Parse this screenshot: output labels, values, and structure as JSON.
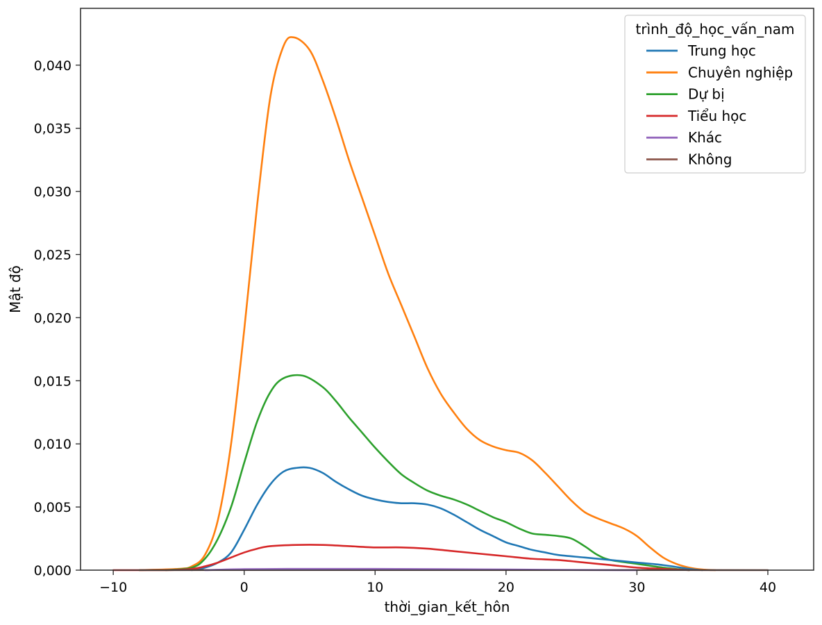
{
  "chart_data": {
    "type": "line",
    "title": "",
    "xlabel": "thời_gian_kết_hôn",
    "ylabel": "Mật độ",
    "xlim": [
      -12.5,
      43.5
    ],
    "ylim": [
      0,
      0.0445
    ],
    "x_ticks": [
      -10,
      0,
      10,
      20,
      30,
      40
    ],
    "x_tick_labels": [
      "−10",
      "0",
      "10",
      "20",
      "30",
      "40"
    ],
    "y_ticks": [
      0,
      0.005,
      0.01,
      0.015,
      0.02,
      0.025,
      0.03,
      0.035,
      0.04
    ],
    "y_tick_labels": [
      "0,000",
      "0,005",
      "0,010",
      "0,015",
      "0,020",
      "0,025",
      "0,030",
      "0,035",
      "0,040"
    ],
    "grid": false,
    "legend": {
      "title": "trình_độ_học_vấn_nam",
      "placement": "top-right"
    },
    "series": [
      {
        "name": "Trung học",
        "color": "#1f77b4",
        "points": [
          [
            -4,
            0
          ],
          [
            -3,
            0.0002
          ],
          [
            -2,
            0.0006
          ],
          [
            -1,
            0.0014
          ],
          [
            0,
            0.0032
          ],
          [
            1,
            0.0052
          ],
          [
            2,
            0.0068
          ],
          [
            3,
            0.0078
          ],
          [
            4,
            0.0081
          ],
          [
            5,
            0.0081
          ],
          [
            6,
            0.0077
          ],
          [
            7,
            0.007
          ],
          [
            8,
            0.0064
          ],
          [
            9,
            0.0059
          ],
          [
            10,
            0.0056
          ],
          [
            11,
            0.0054
          ],
          [
            12,
            0.0053
          ],
          [
            13,
            0.0053
          ],
          [
            14,
            0.0052
          ],
          [
            15,
            0.0049
          ],
          [
            16,
            0.0044
          ],
          [
            17,
            0.0038
          ],
          [
            18,
            0.0032
          ],
          [
            19,
            0.0027
          ],
          [
            20,
            0.0022
          ],
          [
            21,
            0.0019
          ],
          [
            22,
            0.0016
          ],
          [
            23,
            0.0014
          ],
          [
            24,
            0.0012
          ],
          [
            26,
            0.001
          ],
          [
            28,
            0.0008
          ],
          [
            30,
            0.0006
          ],
          [
            32,
            0.0004
          ],
          [
            34,
            0.0001
          ],
          [
            35,
            0
          ]
        ]
      },
      {
        "name": "Chuyên nghiệp",
        "color": "#ff7f0e",
        "points": [
          [
            -8,
            0
          ],
          [
            -5,
            0.0001
          ],
          [
            -4,
            0.0003
          ],
          [
            -3,
            0.0012
          ],
          [
            -2,
            0.004
          ],
          [
            -1,
            0.01
          ],
          [
            0,
            0.019
          ],
          [
            1,
            0.029
          ],
          [
            2,
            0.0375
          ],
          [
            3,
            0.0415
          ],
          [
            3.8,
            0.0422
          ],
          [
            5,
            0.0412
          ],
          [
            6,
            0.0388
          ],
          [
            7,
            0.0358
          ],
          [
            8,
            0.0325
          ],
          [
            9,
            0.0295
          ],
          [
            10,
            0.0265
          ],
          [
            11,
            0.0235
          ],
          [
            12,
            0.021
          ],
          [
            13,
            0.0185
          ],
          [
            14,
            0.016
          ],
          [
            15,
            0.014
          ],
          [
            16,
            0.0125
          ],
          [
            17,
            0.0112
          ],
          [
            18,
            0.0103
          ],
          [
            19,
            0.0098
          ],
          [
            20,
            0.0095
          ],
          [
            21,
            0.0093
          ],
          [
            22,
            0.0087
          ],
          [
            23,
            0.0077
          ],
          [
            24,
            0.0066
          ],
          [
            25,
            0.0055
          ],
          [
            26,
            0.0046
          ],
          [
            27,
            0.0041
          ],
          [
            28,
            0.0037
          ],
          [
            29,
            0.0033
          ],
          [
            30,
            0.0027
          ],
          [
            31,
            0.0018
          ],
          [
            32,
            0.001
          ],
          [
            33,
            0.0005
          ],
          [
            34,
            0.0002
          ],
          [
            35,
            5e-05
          ],
          [
            36,
            0
          ]
        ]
      },
      {
        "name": "Dự bị",
        "color": "#2ca02c",
        "points": [
          [
            -6,
            0
          ],
          [
            -4,
            0.0002
          ],
          [
            -3,
            0.0009
          ],
          [
            -2,
            0.0025
          ],
          [
            -1,
            0.005
          ],
          [
            0,
            0.0085
          ],
          [
            1,
            0.0118
          ],
          [
            2,
            0.0141
          ],
          [
            3,
            0.0152
          ],
          [
            4.5,
            0.0154
          ],
          [
            6,
            0.0145
          ],
          [
            7,
            0.0134
          ],
          [
            8,
            0.0121
          ],
          [
            9,
            0.0109
          ],
          [
            10,
            0.0097
          ],
          [
            11,
            0.0086
          ],
          [
            12,
            0.0076
          ],
          [
            13,
            0.0069
          ],
          [
            14,
            0.0063
          ],
          [
            15,
            0.0059
          ],
          [
            16,
            0.0056
          ],
          [
            17,
            0.0052
          ],
          [
            18,
            0.0047
          ],
          [
            19,
            0.0042
          ],
          [
            20,
            0.0038
          ],
          [
            21,
            0.0033
          ],
          [
            22,
            0.0029
          ],
          [
            23,
            0.0028
          ],
          [
            24,
            0.0027
          ],
          [
            25,
            0.0025
          ],
          [
            26,
            0.0019
          ],
          [
            27,
            0.0012
          ],
          [
            28,
            0.0008
          ],
          [
            30,
            0.0005
          ],
          [
            32,
            0.0002
          ],
          [
            34,
            0
          ]
        ]
      },
      {
        "name": "Tiểu học",
        "color": "#d62728",
        "points": [
          [
            -10,
            0
          ],
          [
            -6,
            0
          ],
          [
            -4,
            0.0001
          ],
          [
            -3,
            0.0003
          ],
          [
            -2,
            0.0006
          ],
          [
            -1,
            0.001
          ],
          [
            0,
            0.0014
          ],
          [
            1,
            0.0017
          ],
          [
            2,
            0.0019
          ],
          [
            4,
            0.002
          ],
          [
            6,
            0.002
          ],
          [
            8,
            0.0019
          ],
          [
            10,
            0.0018
          ],
          [
            12,
            0.0018
          ],
          [
            14,
            0.0017
          ],
          [
            16,
            0.0015
          ],
          [
            18,
            0.0013
          ],
          [
            20,
            0.0011
          ],
          [
            22,
            0.0009
          ],
          [
            24,
            0.0008
          ],
          [
            26,
            0.0006
          ],
          [
            28,
            0.0004
          ],
          [
            30,
            0.0002
          ],
          [
            32,
            0.0001
          ],
          [
            34,
            0
          ]
        ]
      },
      {
        "name": "Khác",
        "color": "#9467bd",
        "points": [
          [
            -3,
            0
          ],
          [
            0,
            8e-05
          ],
          [
            5,
            0.0001
          ],
          [
            10,
            0.0001
          ],
          [
            15,
            8e-05
          ],
          [
            20,
            5e-05
          ],
          [
            25,
            2e-05
          ],
          [
            30,
            0
          ]
        ]
      },
      {
        "name": "Không",
        "color": "#8c564b",
        "points": [
          [
            -8,
            0
          ],
          [
            0,
            1e-05
          ],
          [
            10,
            1e-05
          ],
          [
            20,
            1e-05
          ],
          [
            30,
            1e-05
          ],
          [
            40,
            0
          ]
        ]
      }
    ]
  }
}
